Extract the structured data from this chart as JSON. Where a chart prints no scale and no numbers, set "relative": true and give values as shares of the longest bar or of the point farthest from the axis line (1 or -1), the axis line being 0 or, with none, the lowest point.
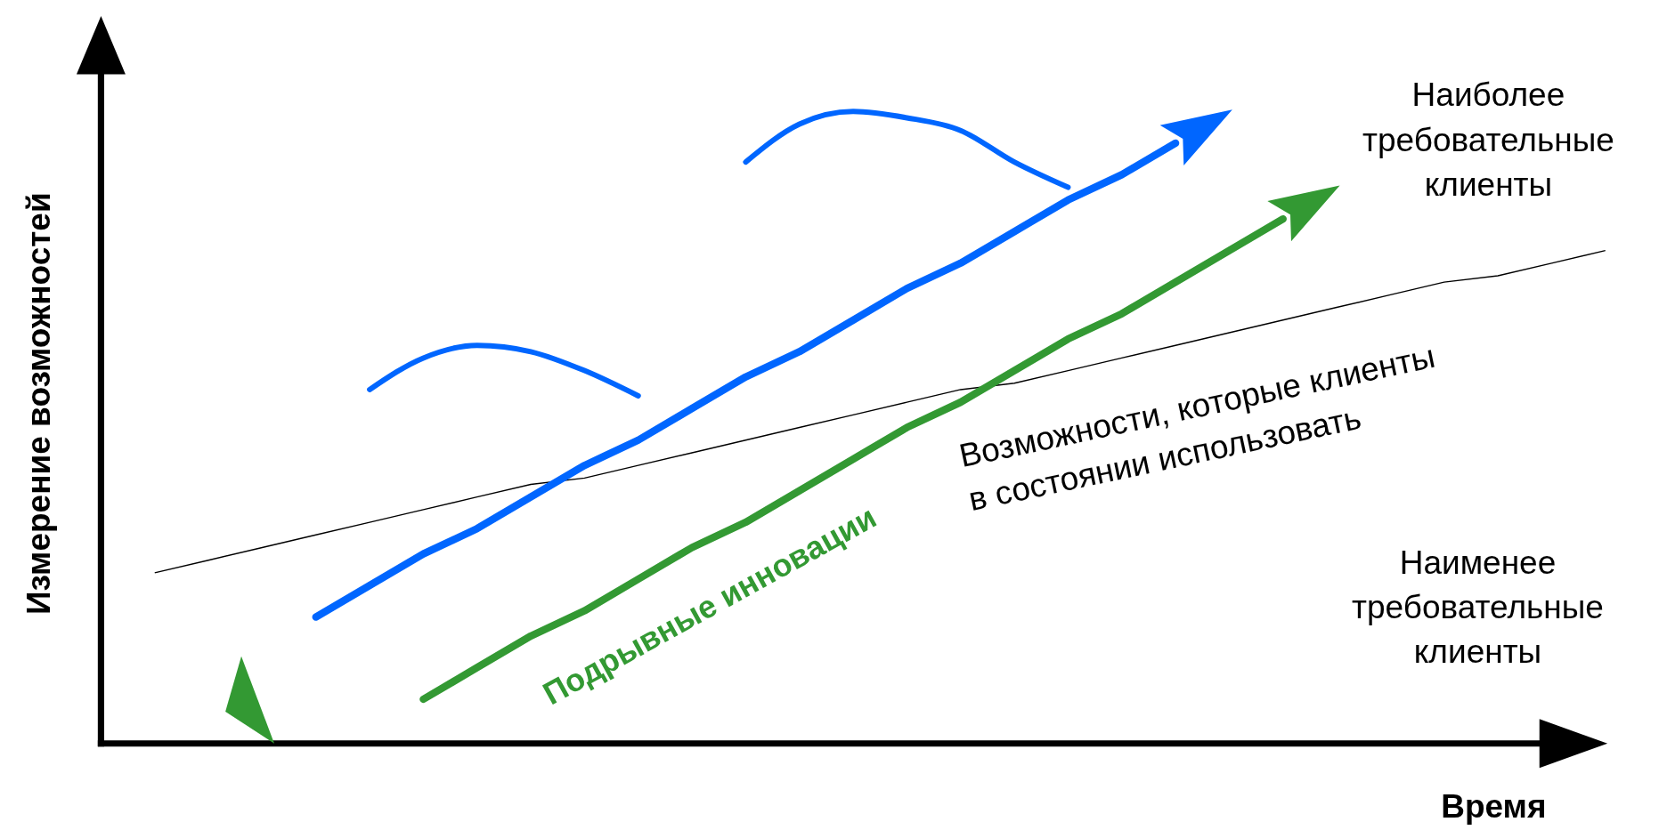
{
  "chart_data": {
    "type": "line",
    "relative": true,
    "xlabel": "Время",
    "ylabel": "Измерение возможностей",
    "categories": [
      null,
      null,
      null,
      null,
      null,
      null,
      null,
      null,
      null,
      null,
      null,
      null,
      null,
      null,
      null,
      null,
      null,
      null,
      null,
      null,
      null,
      null,
      null,
      null,
      null,
      null,
      null,
      null,
      null
    ],
    "series": [
      {
        "color": "#000000",
        "values": [
          null,
          0.27,
          0.29,
          0.31,
          0.33,
          0.35,
          0.37,
          0.39,
          0.41,
          0.42,
          0.44,
          0.46,
          0.48,
          0.5,
          0.52,
          0.54,
          0.56,
          0.57,
          0.59,
          0.61,
          0.63,
          0.65,
          0.67,
          0.69,
          0.71,
          0.73,
          0.74,
          0.76,
          0.78
        ]
      },
      {
        "color": "#0066ff",
        "values": [
          null,
          null,
          null,
          null,
          0.2,
          0.25,
          0.3,
          0.34,
          0.39,
          0.44,
          0.48,
          0.53,
          0.58,
          0.62,
          0.67,
          0.72,
          0.76,
          0.81,
          0.86,
          0.9,
          0.95,
          null,
          null,
          null,
          null,
          null,
          null,
          null,
          null
        ]
      },
      {
        "color": "#0066ff",
        "values": [
          null,
          null,
          null,
          null,
          null,
          0.56,
          0.61,
          0.63,
          0.62,
          0.59,
          0.55,
          null,
          null,
          null,
          null,
          null,
          null,
          null,
          null,
          null,
          null,
          null,
          null,
          null,
          null,
          null,
          null,
          null,
          null
        ]
      },
      {
        "color": "#0066ff",
        "values": [
          null,
          null,
          null,
          null,
          null,
          null,
          null,
          null,
          null,
          null,
          null,
          null,
          0.92,
          0.98,
          1,
          0.99,
          0.97,
          0.92,
          0.88,
          null,
          null,
          null,
          null,
          null,
          null,
          null,
          null,
          null,
          null
        ]
      },
      {
        "name": "Подрывные инновации",
        "color": "#339933",
        "values": [
          null,
          null,
          null,
          null,
          null,
          null,
          0.07,
          0.12,
          0.17,
          0.21,
          0.26,
          0.31,
          0.35,
          0.4,
          0.45,
          0.5,
          0.54,
          0.59,
          0.64,
          0.68,
          0.73,
          0.78,
          0.83,
          null,
          null,
          null,
          null,
          null,
          null
        ]
      }
    ],
    "annotations": [
      "Наиболее требовательные клиенты",
      "Наименее требовательные клиенты",
      "Возможности, которые клиенты в состоянии использовать"
    ]
  }
}
